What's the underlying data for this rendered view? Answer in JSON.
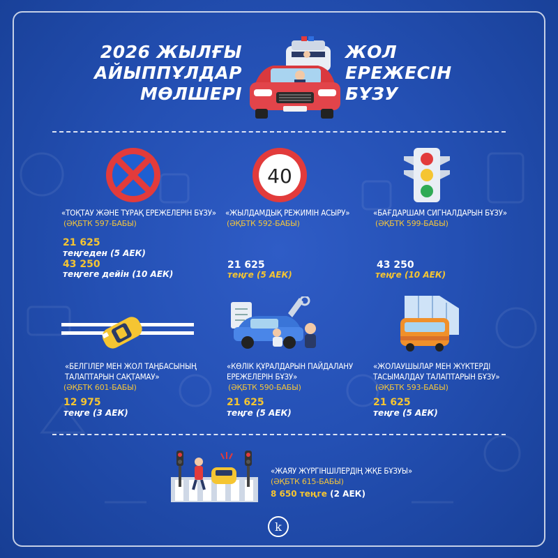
{
  "header": {
    "title_left": [
      "2026 ЖЫЛҒЫ",
      "АЙЫППҰЛДАР",
      "МӨЛШЕРІ"
    ],
    "title_right": [
      "ЖОЛ",
      "ЕРЕЖЕСІН",
      "БҰЗУ"
    ]
  },
  "items": [
    {
      "title": "«ТОҚТАУ ЖӘНЕ ТҰРАҚ ЕРЕЖЕЛЕРІН БҰЗУ»",
      "ref": "(ӘҚБТК 597-БАБЫ)",
      "amount1": "21 625",
      "suffix1": "теңгеден (5 АЕК)",
      "amount2": "43 250",
      "suffix2": "теңгеге дейін (10 АЕК)",
      "icon": "no-stopping-sign-icon"
    },
    {
      "title": "«ЖЫЛДАМДЫҚ РЕЖИМІН АСЫРУ»",
      "ref": "(ӘҚБТК 592-БАБЫ)",
      "amount": "21 625",
      "suffix": "теңге (5 АЕК)",
      "icon": "speed-limit-40-icon",
      "sign_text": "40"
    },
    {
      "title": "«БАҒДАРШАМ СИГНАЛДАРЫН БҰЗУ»",
      "ref": "(ӘҚБТК 599-БАБЫ)",
      "amount": "43 250",
      "suffix": "теңге (10 АЕК)",
      "icon": "traffic-light-icon"
    },
    {
      "title": [
        "«БЕЛГІЛЕР МЕН ЖОЛ ТАҢБАСЫНЫҢ",
        "ТАЛАПТАРЫН САҚТАМАУ»"
      ],
      "ref": "(ӘҚБТК 601-БАБЫ)",
      "amount": "12 975",
      "suffix": "теңге (3 АЕК)",
      "icon": "taxi-road-marking-icon"
    },
    {
      "title": [
        "«КӨЛІК ҚҰРАЛДАРЫН ПАЙДАЛАНУ",
        "ЕРЕЖЕЛЕРІН БҰЗУ»"
      ],
      "ref": "(ӘҚБТК 590-БАБЫ)",
      "amount": "21 625",
      "suffix": "теңге (5 АЕК)",
      "icon": "car-repair-icon"
    },
    {
      "title": [
        "«ЖОЛАУШЫЛАР МЕН ЖҮКТЕРДІ",
        "ТАСЫМАЛДАУ ТАЛАПТАРЫН БҰЗУ»"
      ],
      "ref": "(ӘҚБТК 593-БАБЫ)",
      "amount": "21 625",
      "suffix": "теңге (5 АЕК)",
      "icon": "bus-icon"
    },
    {
      "title": "«ЖАЯУ ЖҮРГІНШІЛЕРДІҢ ЖҚЕ БҰЗУЫ»",
      "ref": "(ӘҚБТК 615-БАБЫ)",
      "amount": "8 650 теңге",
      "suffix": "(2 АЕК)",
      "icon": "pedestrian-crossing-icon"
    }
  ],
  "footer": {
    "logo_letter": "k"
  },
  "colors": {
    "background": "#2450b4",
    "accent_yellow": "#f5c532",
    "ref_orange": "#f3c53c",
    "car_red": "#d9393e"
  }
}
